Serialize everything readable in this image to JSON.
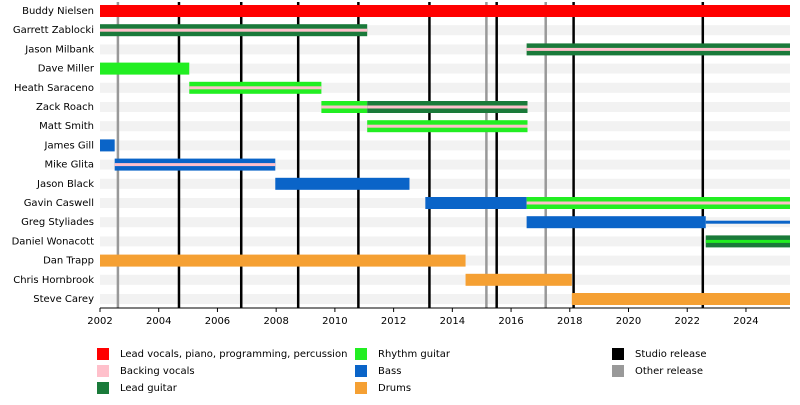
{
  "chart_data": {
    "type": "timeline",
    "xlim": [
      2002,
      2025.5
    ],
    "xticks": [
      2002,
      2004,
      2006,
      2008,
      2010,
      2012,
      2014,
      2016,
      2018,
      2020,
      2022,
      2024
    ],
    "roles": [
      {
        "name": "Lead vocals, piano, programming, percussion",
        "color": "#ff0000"
      },
      {
        "name": "Backing vocals",
        "color": "#ffc0cb"
      },
      {
        "name": "Lead guitar",
        "color": "#1a7a3a"
      },
      {
        "name": "Rhythm guitar",
        "color": "#22ee22"
      },
      {
        "name": "Bass",
        "color": "#0a64c8"
      },
      {
        "name": "Drums",
        "color": "#f5a033"
      }
    ],
    "release_types": [
      {
        "name": "Studio release",
        "color": "#000000",
        "dates": [
          2004.69,
          2006.81,
          2008.75,
          2010.8,
          2013.22,
          2015.51,
          2018.13,
          2022.53
        ]
      },
      {
        "name": "Other release",
        "color": "#999999",
        "dates": [
          2002.61,
          2015.16,
          2017.18
        ]
      }
    ],
    "members": [
      {
        "name": "Buddy Nielsen",
        "segments": [
          {
            "role": 0,
            "start": 2002,
            "end": 2025.5
          }
        ]
      },
      {
        "name": "Garrett Zablocki",
        "segments": [
          {
            "role": 2,
            "stripe": 1,
            "start": 2002,
            "end": 2011.1
          }
        ]
      },
      {
        "name": "Jason Milbank",
        "segments": [
          {
            "role": 2,
            "stripe": 1,
            "start": 2016.53,
            "end": 2025.5
          }
        ]
      },
      {
        "name": "Dave Miller",
        "segments": [
          {
            "role": 3,
            "start": 2002,
            "end": 2005.04
          }
        ]
      },
      {
        "name": "Heath Saraceno",
        "segments": [
          {
            "role": 3,
            "stripe": 1,
            "start": 2005.04,
            "end": 2009.54
          }
        ]
      },
      {
        "name": "Zack Roach",
        "segments": [
          {
            "role": 3,
            "stripe": 1,
            "start": 2009.54,
            "end": 2011.1
          },
          {
            "role": 2,
            "stripe": 1,
            "start": 2011.1,
            "end": 2016.56
          }
        ]
      },
      {
        "name": "Matt Smith",
        "segments": [
          {
            "role": 3,
            "stripe": 1,
            "start": 2011.1,
            "end": 2016.56
          }
        ]
      },
      {
        "name": "James Gill",
        "segments": [
          {
            "role": 4,
            "start": 2002,
            "end": 2002.5
          }
        ]
      },
      {
        "name": "Mike Glita",
        "segments": [
          {
            "role": 4,
            "stripe": 1,
            "start": 2002.5,
            "end": 2007.97
          }
        ]
      },
      {
        "name": "Jason Black",
        "segments": [
          {
            "role": 4,
            "start": 2007.97,
            "end": 2012.54
          }
        ]
      },
      {
        "name": "Gavin Caswell",
        "segments": [
          {
            "role": 4,
            "start": 2013.08,
            "end": 2016.53
          },
          {
            "role": 3,
            "stripe": 1,
            "start": 2016.53,
            "end": 2025.5
          }
        ]
      },
      {
        "name": "Greg Styliades",
        "segments": [
          {
            "role": 4,
            "start": 2016.53,
            "end": 2022.63
          },
          {
            "stripe": 4,
            "start": 2022.63,
            "end": 2025.5
          }
        ]
      },
      {
        "name": "Daniel Wonacott",
        "segments": [
          {
            "role": 2,
            "stripe": 3,
            "start": 2022.63,
            "end": 2025.5
          }
        ]
      },
      {
        "name": "Dan Trapp",
        "segments": [
          {
            "role": 5,
            "start": 2002,
            "end": 2014.45
          }
        ]
      },
      {
        "name": "Chris Hornbrook",
        "segments": [
          {
            "role": 5,
            "start": 2014.45,
            "end": 2018.07
          }
        ]
      },
      {
        "name": "Steve Carey",
        "segments": [
          {
            "role": 5,
            "start": 2018.07,
            "end": 2025.5
          }
        ]
      }
    ]
  }
}
